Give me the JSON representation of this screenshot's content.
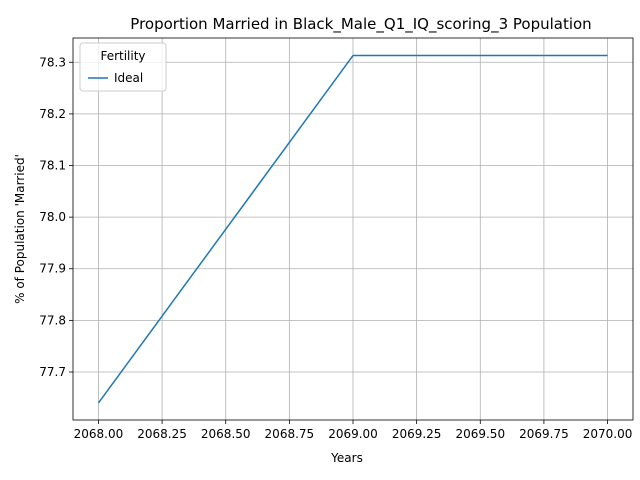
{
  "chart_data": {
    "type": "line",
    "title": "Proportion Married in Black_Male_Q1_IQ_scoring_3 Population",
    "xlabel": "Years",
    "ylabel": "% of Population 'Married'",
    "x": [
      2068,
      2069,
      2070
    ],
    "series": [
      {
        "name": "Ideal",
        "values": [
          77.64,
          78.313,
          78.313
        ],
        "color": "#1f77b4"
      }
    ],
    "xlim": [
      2067.9,
      2070.1
    ],
    "ylim": [
      77.607,
      78.347
    ],
    "xticks": [
      2068.0,
      2068.25,
      2068.5,
      2068.75,
      2069.0,
      2069.25,
      2069.5,
      2069.75,
      2070.0
    ],
    "xtick_labels": [
      "2068.00",
      "2068.25",
      "2068.50",
      "2068.75",
      "2069.00",
      "2069.25",
      "2069.50",
      "2069.75",
      "2070.00"
    ],
    "yticks": [
      77.7,
      77.8,
      77.9,
      78.0,
      78.1,
      78.2,
      78.3
    ],
    "ytick_labels": [
      "77.7",
      "77.8",
      "77.9",
      "78.0",
      "78.1",
      "78.2",
      "78.3"
    ],
    "grid": true,
    "legend": {
      "title": "Fertility",
      "placement": "top-left"
    }
  }
}
